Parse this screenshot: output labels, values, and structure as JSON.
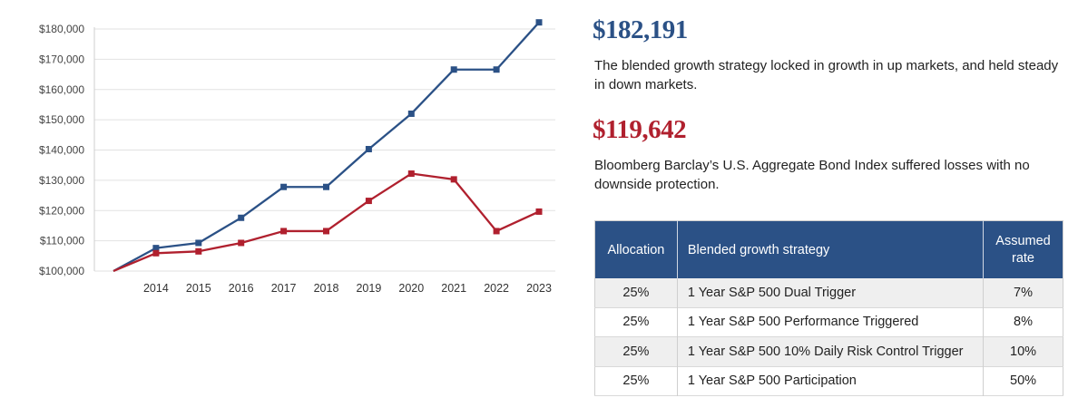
{
  "chart_data": {
    "type": "line",
    "x": [
      "2013",
      "2014",
      "2015",
      "2016",
      "2017",
      "2018",
      "2019",
      "2020",
      "2021",
      "2022",
      "2023"
    ],
    "xtick_labels": [
      "2014",
      "2015",
      "2016",
      "2017",
      "2018",
      "2019",
      "2020",
      "2021",
      "2022",
      "2023"
    ],
    "ytick_labels": [
      "$100,000",
      "$110,000",
      "$120,000",
      "$130,000",
      "$140,000",
      "$150,000",
      "$160,000",
      "$170,000",
      "$180,000"
    ],
    "ylim": [
      100000,
      180000
    ],
    "grid": true,
    "series": [
      {
        "color": "#2b5186",
        "values": [
          100000,
          107600,
          109300,
          117600,
          127800,
          127800,
          140300,
          152000,
          166600,
          166600,
          182191
        ]
      },
      {
        "color": "#b0202e",
        "values": [
          100000,
          105900,
          106500,
          109300,
          113200,
          113200,
          123200,
          132200,
          130300,
          113200,
          119642
        ]
      }
    ]
  },
  "stats": [
    {
      "value": "$182,191",
      "color": "#2b5186",
      "description": "The blended growth strategy locked in growth in up markets, and held steady in down markets."
    },
    {
      "value": "$119,642",
      "color": "#b0202e",
      "description": "Bloomberg Barclay’s U.S. Aggregate Bond Index suffered losses with no downside protection."
    }
  ],
  "table": {
    "headers": [
      "Allocation",
      "Blended growth strategy",
      "Assumed rate"
    ],
    "rows": [
      [
        "25%",
        "1 Year S&P 500 Dual Trigger",
        "7%"
      ],
      [
        "25%",
        "1 Year S&P 500 Performance Triggered",
        "8%"
      ],
      [
        "25%",
        "1 Year S&P 500 10% Daily Risk Control Trigger",
        "10%"
      ],
      [
        "25%",
        "1 Year S&P 500 Participation",
        "50%"
      ]
    ],
    "header_color": "#2b5186"
  }
}
